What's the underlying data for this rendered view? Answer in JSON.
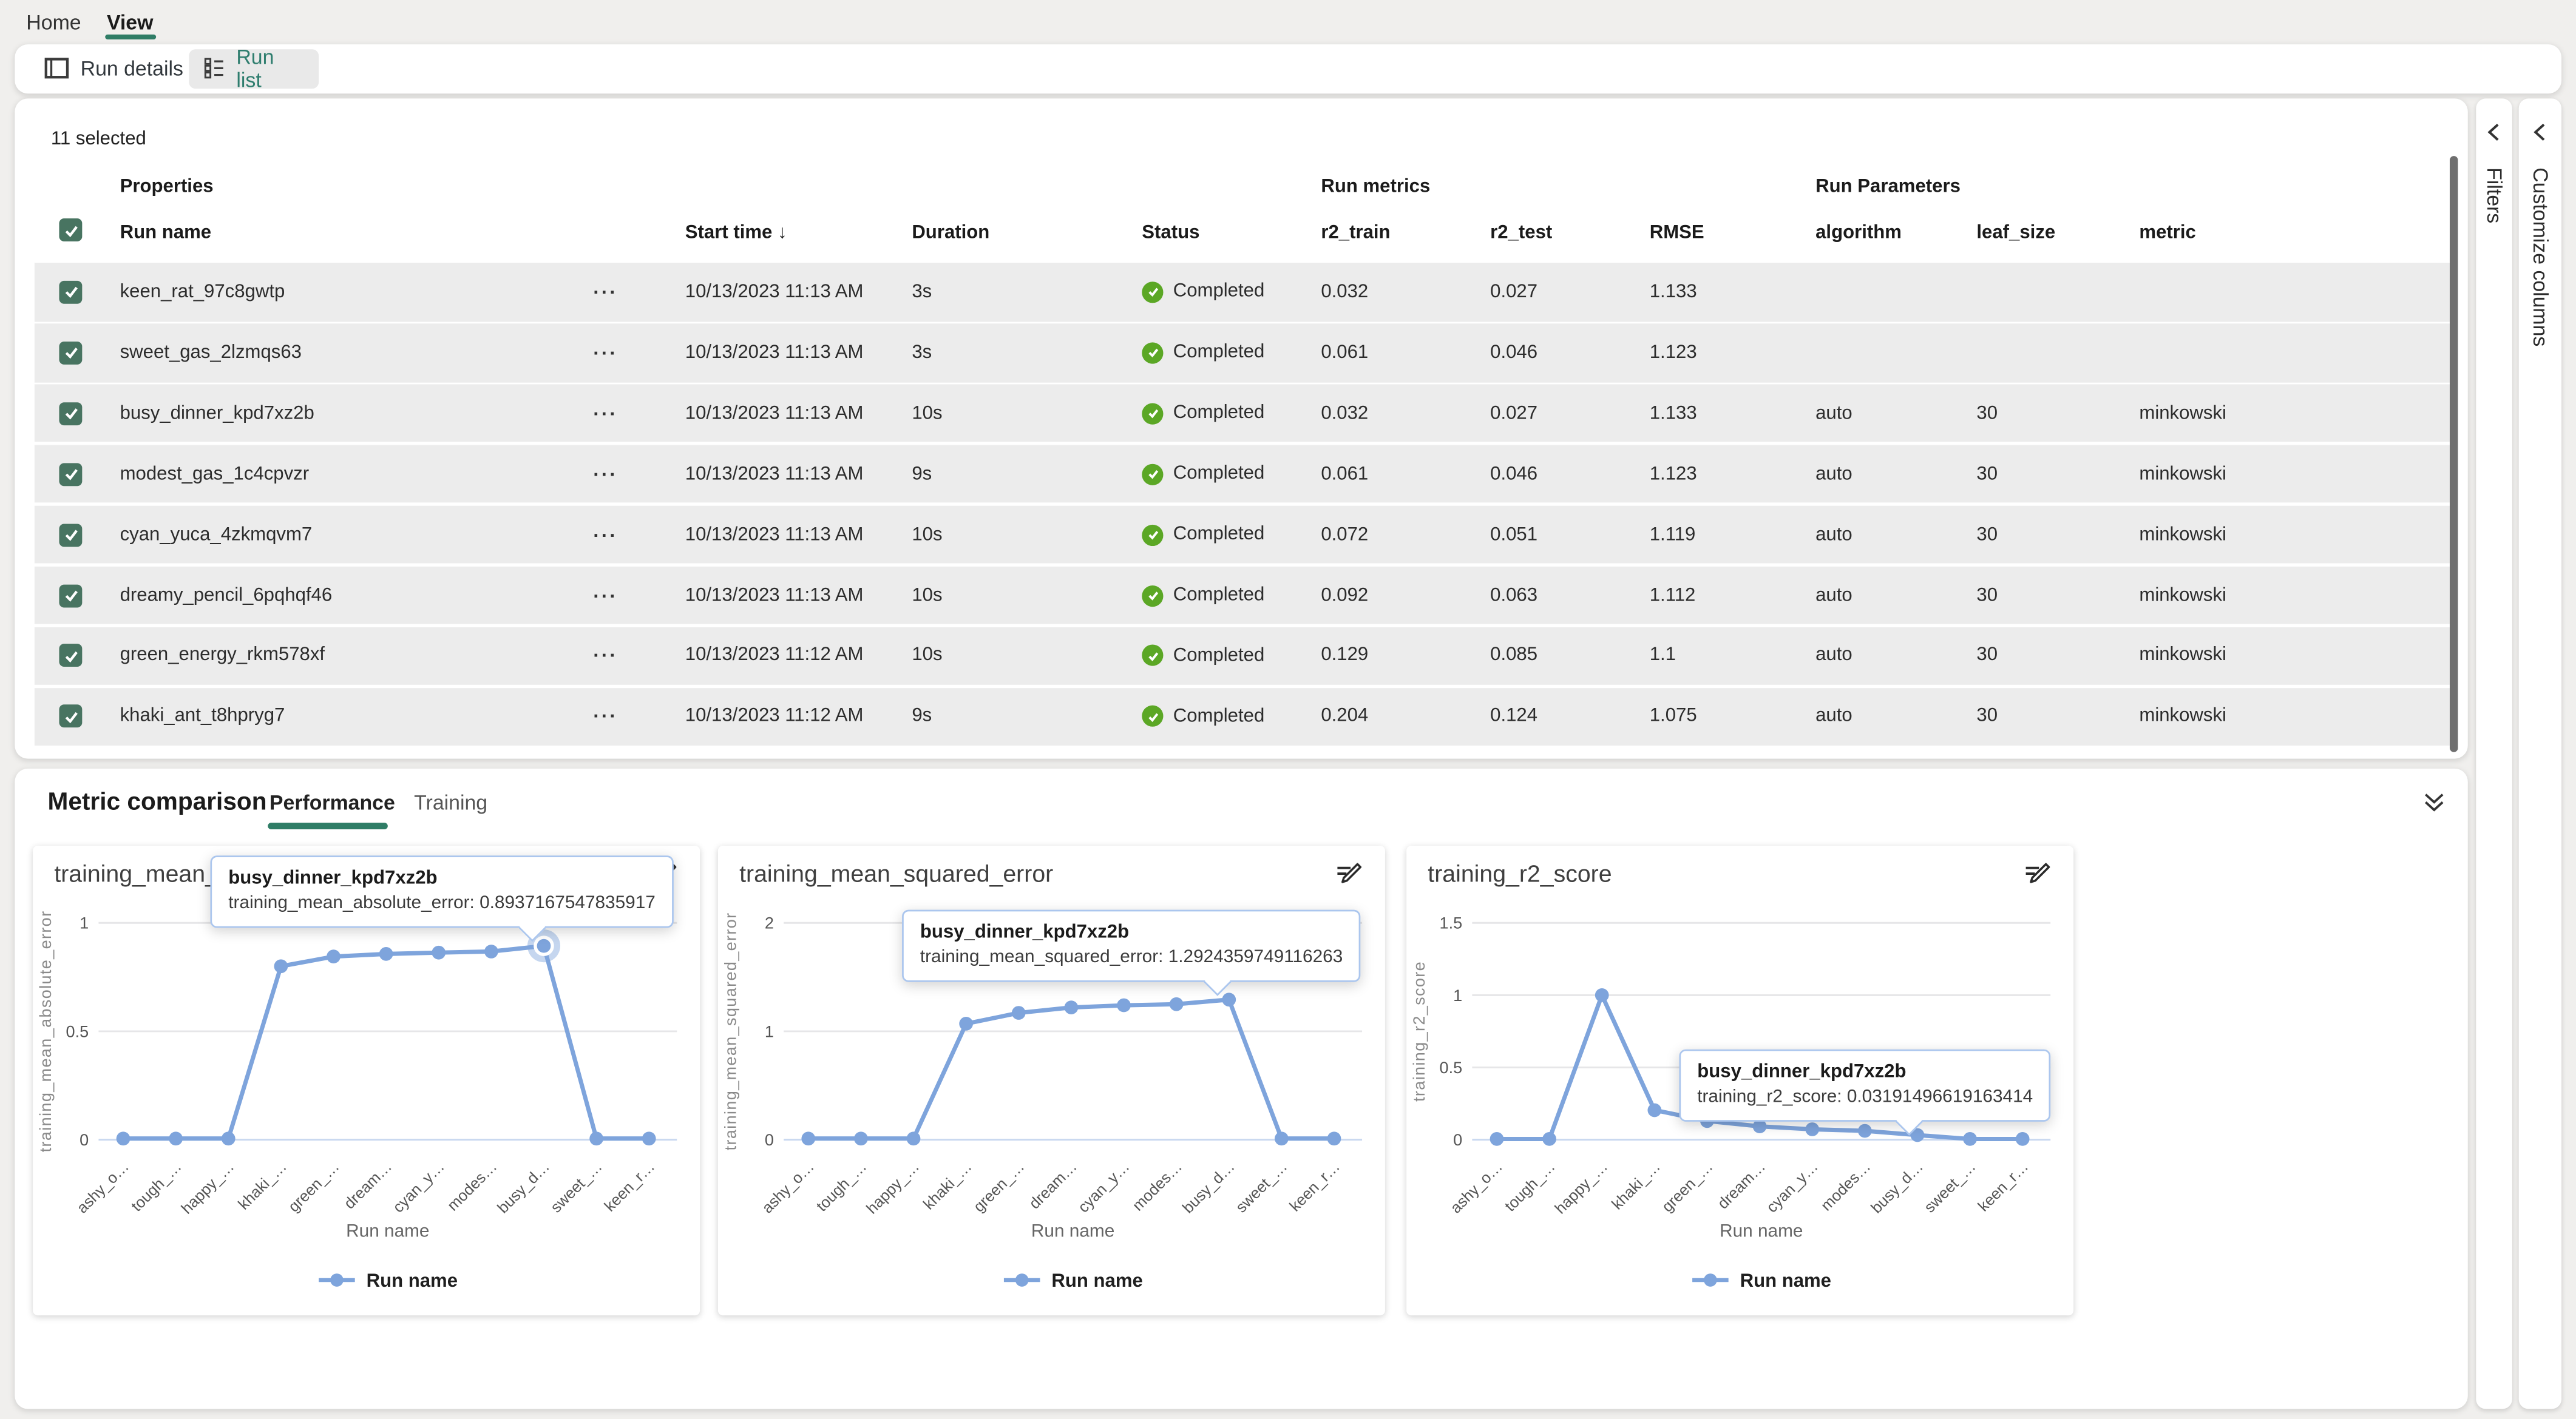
{
  "colors": {
    "accent_green": "#2f7d66",
    "runlist_green": "#2e7d6e",
    "checkbox_green": "#487461",
    "status_green": "#5ba725",
    "line_blue": "#7ea4dc",
    "tooltip_border": "#abc6ee",
    "row_gray": "#ececec",
    "page_bg": "#f0efed"
  },
  "top_tabs": {
    "items": [
      {
        "label": "Home",
        "active": false
      },
      {
        "label": "View",
        "active": true
      }
    ]
  },
  "toolbar": {
    "buttons": [
      {
        "label": "Run details",
        "icon": "panel-left-icon",
        "selected": false
      },
      {
        "label": "Run list",
        "icon": "list-icon",
        "selected": true
      }
    ]
  },
  "run_table": {
    "selected_count": "11 selected",
    "group_headers": [
      {
        "label": "Properties"
      },
      {
        "label": "Run metrics"
      },
      {
        "label": "Run Parameters"
      }
    ],
    "columns": [
      "Run name",
      "Start time",
      "Duration",
      "Status",
      "r2_train",
      "r2_test",
      "RMSE",
      "algorithm",
      "leaf_size",
      "metric"
    ],
    "sort": {
      "column": "Start time",
      "direction": "↓"
    },
    "more_glyph": "···",
    "rows": [
      {
        "name": "keen_rat_97c8gwtp",
        "start_time": "10/13/2023 11:13 AM",
        "duration": "3s",
        "status": "Completed",
        "r2_train": "0.032",
        "r2_test": "0.027",
        "rmse": "1.133",
        "algorithm": "",
        "leaf_size": "",
        "metric": ""
      },
      {
        "name": "sweet_gas_2lzmqs63",
        "start_time": "10/13/2023 11:13 AM",
        "duration": "3s",
        "status": "Completed",
        "r2_train": "0.061",
        "r2_test": "0.046",
        "rmse": "1.123",
        "algorithm": "",
        "leaf_size": "",
        "metric": ""
      },
      {
        "name": "busy_dinner_kpd7xz2b",
        "start_time": "10/13/2023 11:13 AM",
        "duration": "10s",
        "status": "Completed",
        "r2_train": "0.032",
        "r2_test": "0.027",
        "rmse": "1.133",
        "algorithm": "auto",
        "leaf_size": "30",
        "metric": "minkowski"
      },
      {
        "name": "modest_gas_1c4cpvzr",
        "start_time": "10/13/2023 11:13 AM",
        "duration": "9s",
        "status": "Completed",
        "r2_train": "0.061",
        "r2_test": "0.046",
        "rmse": "1.123",
        "algorithm": "auto",
        "leaf_size": "30",
        "metric": "minkowski"
      },
      {
        "name": "cyan_yuca_4zkmqvm7",
        "start_time": "10/13/2023 11:13 AM",
        "duration": "10s",
        "status": "Completed",
        "r2_train": "0.072",
        "r2_test": "0.051",
        "rmse": "1.119",
        "algorithm": "auto",
        "leaf_size": "30",
        "metric": "minkowski"
      },
      {
        "name": "dreamy_pencil_6pqhqf46",
        "start_time": "10/13/2023 11:13 AM",
        "duration": "10s",
        "status": "Completed",
        "r2_train": "0.092",
        "r2_test": "0.063",
        "rmse": "1.112",
        "algorithm": "auto",
        "leaf_size": "30",
        "metric": "minkowski"
      },
      {
        "name": "green_energy_rkm578xf",
        "start_time": "10/13/2023 11:12 AM",
        "duration": "10s",
        "status": "Completed",
        "r2_train": "0.129",
        "r2_test": "0.085",
        "rmse": "1.1",
        "algorithm": "auto",
        "leaf_size": "30",
        "metric": "minkowski"
      },
      {
        "name": "khaki_ant_t8hpryg7",
        "start_time": "10/13/2023 11:12 AM",
        "duration": "9s",
        "status": "Completed",
        "r2_train": "0.204",
        "r2_test": "0.124",
        "rmse": "1.075",
        "algorithm": "auto",
        "leaf_size": "30",
        "metric": "minkowski"
      }
    ]
  },
  "side_panels": [
    {
      "label": "Filters"
    },
    {
      "label": "Customize columns"
    }
  ],
  "metric_comparison": {
    "title": "Metric comparison",
    "tabs": [
      {
        "label": "Performance",
        "active": true
      },
      {
        "label": "Training",
        "active": false
      }
    ]
  },
  "chart_data": [
    {
      "type": "line",
      "title": "training_mean_absolute_error",
      "ylabel": "training_mean_absolute_error",
      "xlabel": "Run name",
      "legend": "Run name",
      "ylim": [
        0,
        1
      ],
      "yticks": [
        1,
        0.5,
        0
      ],
      "categories": [
        "ashy_o…",
        "tough_…",
        "happy_…",
        "khaki_…",
        "green_…",
        "dream…",
        "cyan_y…",
        "modes…",
        "busy_d…",
        "sweet_…",
        "keen_r…"
      ],
      "values": [
        0.005,
        0.005,
        0.005,
        0.8,
        0.845,
        0.857,
        0.863,
        0.868,
        0.894,
        0.005,
        0.005
      ],
      "highlight_index": 8,
      "highlight_ring": true,
      "tooltip": {
        "title": "busy_dinner_kpd7xz2b",
        "text": "training_mean_absolute_error: 0.8937167547835917"
      }
    },
    {
      "type": "line",
      "title": "training_mean_squared_error",
      "ylabel": "training_mean_squared_error",
      "xlabel": "Run name",
      "legend": "Run name",
      "ylim": [
        0,
        2
      ],
      "yticks": [
        2,
        1,
        0
      ],
      "categories": [
        "ashy_o…",
        "tough_…",
        "happy_…",
        "khaki_…",
        "green_…",
        "dream…",
        "cyan_y…",
        "modes…",
        "busy_d…",
        "sweet_…",
        "keen_r…"
      ],
      "values": [
        0.01,
        0.01,
        0.01,
        1.07,
        1.17,
        1.22,
        1.24,
        1.25,
        1.292,
        0.01,
        0.01
      ],
      "highlight_index": 8,
      "highlight_ring": false,
      "tooltip": {
        "title": "busy_dinner_kpd7xz2b",
        "text": "training_mean_squared_error: 1.2924359749116263"
      }
    },
    {
      "type": "line",
      "title": "training_r2_score",
      "ylabel": "training_r2_score",
      "xlabel": "Run name",
      "legend": "Run name",
      "ylim": [
        0,
        1.5
      ],
      "yticks": [
        1.5,
        1,
        0.5,
        0
      ],
      "categories": [
        "ashy_o…",
        "tough_…",
        "happy_…",
        "khaki_…",
        "green_…",
        "dream…",
        "cyan_y…",
        "modes…",
        "busy_d…",
        "sweet_…",
        "keen_r…"
      ],
      "values": [
        0.005,
        0.005,
        1.0,
        0.204,
        0.129,
        0.092,
        0.072,
        0.061,
        0.032,
        0.005,
        0.005
      ],
      "highlight_index": 8,
      "highlight_ring": false,
      "tooltip": {
        "title": "busy_dinner_kpd7xz2b",
        "text": "training_r2_score: 0.03191496619163414"
      }
    }
  ]
}
